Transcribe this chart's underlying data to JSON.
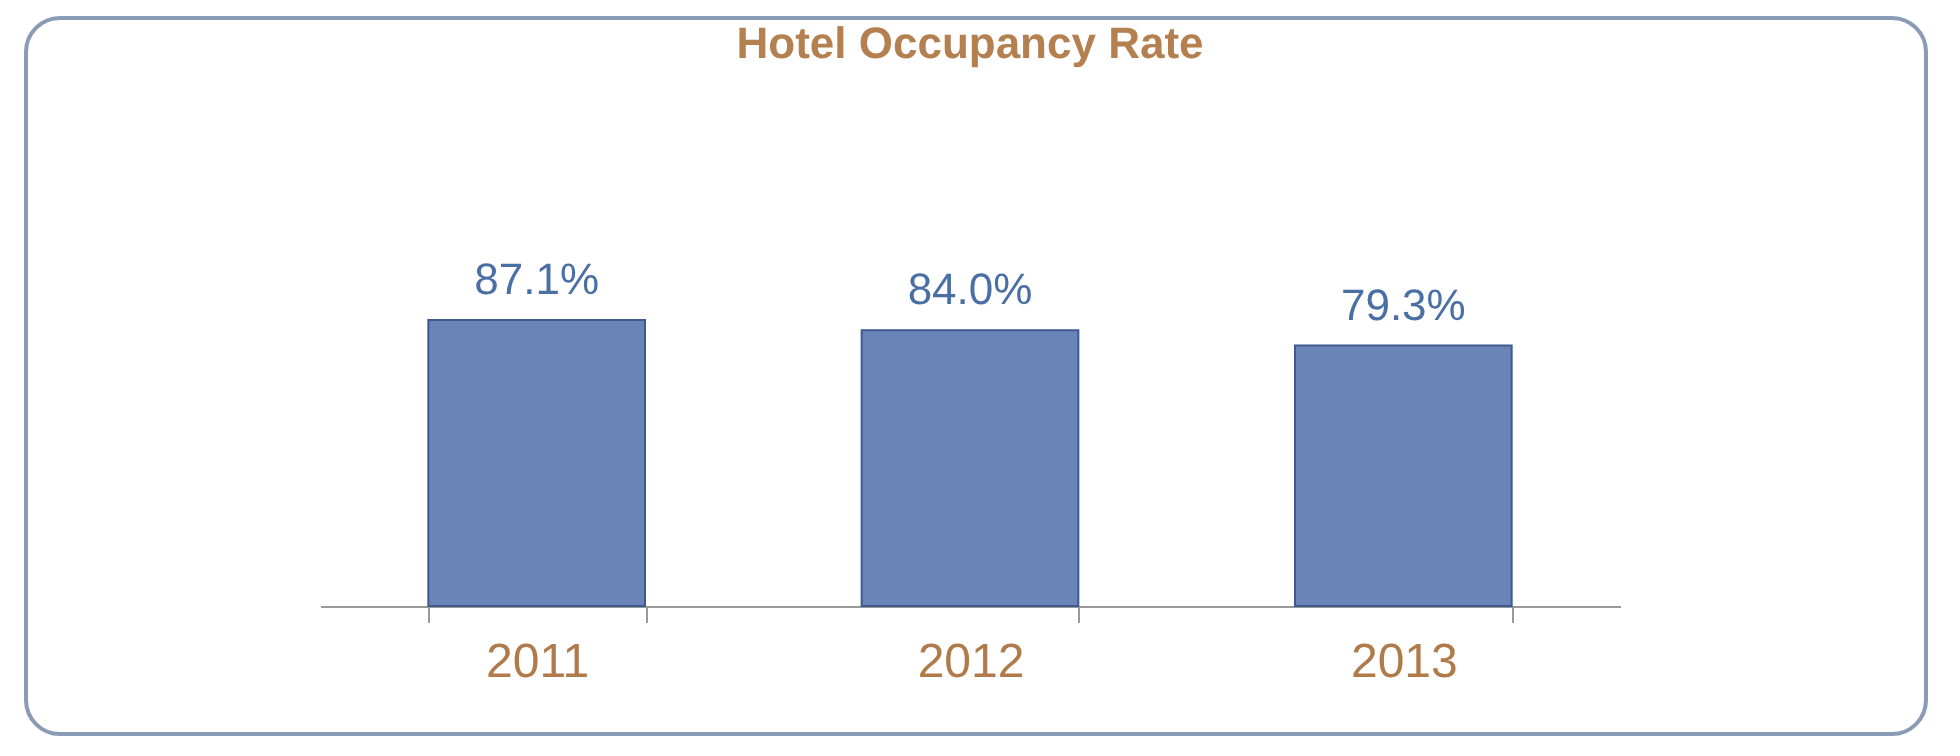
{
  "chart_data": {
    "type": "bar",
    "title": "Hotel Occupancy Rate",
    "categories": [
      "2011",
      "2012",
      "2013"
    ],
    "values": [
      87.1,
      84.0,
      79.3
    ],
    "value_labels": [
      "87.1%",
      "84.0%",
      "79.3%"
    ],
    "color": "#6a84b8"
  }
}
